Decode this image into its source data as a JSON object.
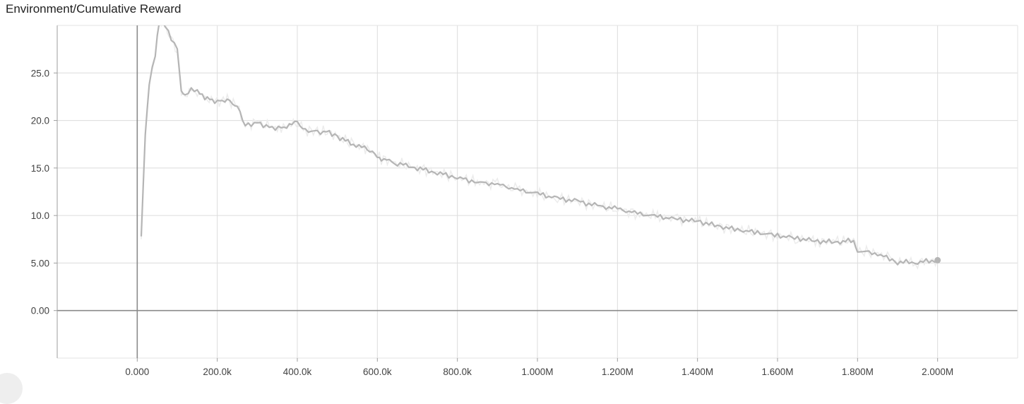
{
  "chart_data": {
    "type": "line",
    "title": "Environment/Cumulative Reward",
    "xlabel": "",
    "ylabel": "",
    "xlim": [
      -200000,
      2200000
    ],
    "ylim": [
      -5,
      30
    ],
    "xticks": [
      {
        "value": 0,
        "label": "0.000"
      },
      {
        "value": 200000,
        "label": "200.0k"
      },
      {
        "value": 400000,
        "label": "400.0k"
      },
      {
        "value": 600000,
        "label": "600.0k"
      },
      {
        "value": 800000,
        "label": "800.0k"
      },
      {
        "value": 1000000,
        "label": "1.000M"
      },
      {
        "value": 1200000,
        "label": "1.200M"
      },
      {
        "value": 1400000,
        "label": "1.400M"
      },
      {
        "value": 1600000,
        "label": "1.600M"
      },
      {
        "value": 1800000,
        "label": "1.800M"
      },
      {
        "value": 2000000,
        "label": "2.000M"
      }
    ],
    "yticks": [
      {
        "value": 0,
        "label": "0.00"
      },
      {
        "value": 5,
        "label": "5.00"
      },
      {
        "value": 10,
        "label": "10.0"
      },
      {
        "value": 15,
        "label": "15.0"
      },
      {
        "value": 20,
        "label": "20.0"
      },
      {
        "value": 25,
        "label": "25.0"
      }
    ],
    "grid": true,
    "legend": "none",
    "series": [
      {
        "color": "#b5b5b5",
        "raw_color": "#ececec",
        "x": [
          10000,
          20000,
          30000,
          45000,
          55000,
          70000,
          85000,
          100000,
          110000,
          120000,
          135000,
          150000,
          175000,
          200000,
          225000,
          250000,
          270000,
          300000,
          330000,
          360000,
          400000,
          420000,
          450000,
          480000,
          500000,
          540000,
          575000,
          600000,
          610000,
          650000,
          700000,
          750000,
          800000,
          850000,
          900000,
          950000,
          1000000,
          1050000,
          1100000,
          1150000,
          1200000,
          1250000,
          1300000,
          1350000,
          1400000,
          1450000,
          1500000,
          1550000,
          1600000,
          1650000,
          1700000,
          1750000,
          1790000,
          1800000,
          1850000,
          1880000,
          1900000,
          1950000,
          2000000
        ],
        "values": [
          7.8,
          18.5,
          24.0,
          27.0,
          30.5,
          30.0,
          28.5,
          27.5,
          23.0,
          22.5,
          23.2,
          23.0,
          22.3,
          22.0,
          22.2,
          21.5,
          19.5,
          19.8,
          19.3,
          19.2,
          19.8,
          19.0,
          18.8,
          18.8,
          18.3,
          17.5,
          17.0,
          16.3,
          16.0,
          15.5,
          15.0,
          14.5,
          14.0,
          13.5,
          13.3,
          12.7,
          12.3,
          11.8,
          11.5,
          11.0,
          10.7,
          10.2,
          9.9,
          9.6,
          9.4,
          8.9,
          8.5,
          8.2,
          7.9,
          7.6,
          7.3,
          7.2,
          7.4,
          6.3,
          6.0,
          5.5,
          5.1,
          5.1,
          5.3
        ]
      }
    ]
  }
}
